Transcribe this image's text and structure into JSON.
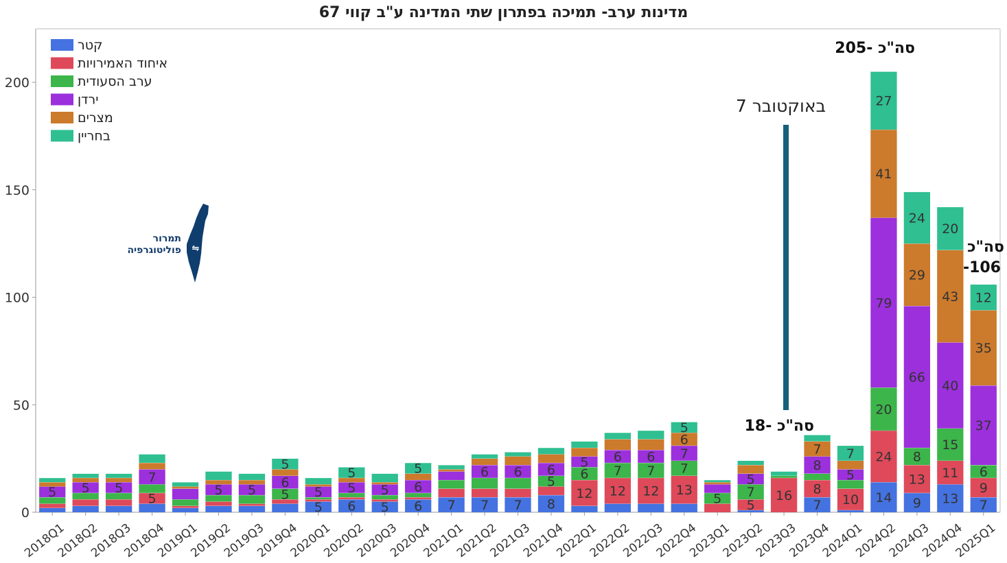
{
  "chart_data": {
    "type": "bar",
    "stacked": true,
    "title": "מדינות ערב- תמיכה בפתרון שתי המדינה ע\"ב קווי 67",
    "categories": [
      "2018Q1",
      "2018Q2",
      "2018Q3",
      "2018Q4",
      "2019Q1",
      "2019Q2",
      "2019Q3",
      "2019Q4",
      "2020Q1",
      "2020Q2",
      "2020Q3",
      "2020Q4",
      "2021Q1",
      "2021Q2",
      "2021Q3",
      "2021Q4",
      "2022Q1",
      "2022Q2",
      "2022Q3",
      "2022Q4",
      "2023Q1",
      "2023Q2",
      "2023Q3",
      "2023Q4",
      "2024Q1",
      "2024Q2",
      "2024Q3",
      "2024Q4",
      "2025Q1"
    ],
    "series": [
      {
        "name": "קטר",
        "color": "#4472e0",
        "values": [
          2,
          3,
          3,
          4,
          2,
          3,
          3,
          4,
          5,
          6,
          5,
          6,
          7,
          7,
          7,
          8,
          3,
          4,
          4,
          4,
          0,
          1,
          0,
          7,
          1,
          14,
          9,
          13,
          7
        ]
      },
      {
        "name": "איחוד האמירויות",
        "color": "#de4a5a",
        "values": [
          2,
          3,
          3,
          5,
          1,
          2,
          1,
          2,
          1,
          1,
          1,
          1,
          4,
          4,
          4,
          4,
          12,
          12,
          12,
          13,
          4,
          5,
          16,
          8,
          10,
          24,
          13,
          11,
          9
        ]
      },
      {
        "name": "ערב הסעודית",
        "color": "#3cb54a",
        "values": [
          3,
          3,
          3,
          4,
          3,
          3,
          4,
          5,
          1,
          2,
          2,
          2,
          4,
          5,
          5,
          5,
          6,
          7,
          7,
          7,
          5,
          7,
          1,
          3,
          4,
          20,
          8,
          15,
          6
        ]
      },
      {
        "name": "ירדן",
        "color": "#9b30dc",
        "values": [
          5,
          5,
          5,
          7,
          5,
          5,
          5,
          6,
          5,
          5,
          5,
          6,
          4,
          6,
          6,
          6,
          5,
          6,
          6,
          7,
          4,
          5,
          0,
          8,
          5,
          79,
          66,
          40,
          37
        ]
      },
      {
        "name": "מצרים",
        "color": "#cc7a2c",
        "values": [
          2,
          2,
          2,
          3,
          1,
          2,
          2,
          3,
          1,
          2,
          1,
          3,
          1,
          3,
          4,
          4,
          4,
          5,
          5,
          6,
          1,
          4,
          0,
          7,
          4,
          41,
          29,
          43,
          35
        ]
      },
      {
        "name": "בחריין",
        "color": "#2fbf91",
        "values": [
          2,
          2,
          2,
          4,
          2,
          4,
          3,
          5,
          3,
          5,
          4,
          5,
          2,
          2,
          2,
          3,
          3,
          3,
          4,
          5,
          1,
          2,
          2,
          3,
          7,
          27,
          24,
          20,
          12
        ]
      }
    ],
    "ylim": [
      0,
      225
    ],
    "yticks": [
      0,
      50,
      100,
      150,
      200
    ],
    "value_labels": [
      [
        [],
        [
          "",
          "",
          "",
          "",
          "",
          ""
        ]
      ],
      {
        "0": [
          null,
          null,
          null,
          "5",
          null,
          null
        ],
        "1": [
          null,
          null,
          null,
          "5",
          null,
          null
        ],
        "2": [
          null,
          null,
          null,
          "5",
          null,
          null
        ],
        "3": [
          null,
          "5",
          null,
          "7",
          null,
          null
        ],
        "5": [
          null,
          null,
          null,
          "5",
          null,
          null
        ],
        "6": [
          null,
          null,
          null,
          "5",
          null,
          null
        ],
        "7": [
          null,
          null,
          "5",
          "6",
          null,
          "5"
        ],
        "8": [
          "5",
          null,
          null,
          "5",
          null,
          null
        ],
        "9": [
          "6",
          null,
          null,
          "5",
          null,
          "5"
        ],
        "10": [
          "5",
          null,
          null,
          "5",
          null,
          null
        ],
        "11": [
          "6",
          null,
          null,
          "6",
          null,
          "5"
        ],
        "12": [
          "7",
          null,
          null,
          null,
          null,
          null
        ],
        "13": [
          "7",
          null,
          null,
          "6",
          null,
          null
        ],
        "14": [
          "7",
          null,
          null,
          "6",
          null,
          null
        ],
        "15": [
          "8",
          null,
          "5",
          "6",
          null,
          null
        ],
        "16": [
          null,
          "12",
          "6",
          "5",
          null,
          null
        ],
        "17": [
          null,
          "12",
          "7",
          "6",
          null,
          null
        ],
        "18": [
          null,
          "12",
          "7",
          "6",
          null,
          null
        ],
        "19": [
          null,
          "13",
          "7",
          "7",
          "6",
          "5"
        ],
        "20": [
          null,
          null,
          "5",
          null,
          null,
          null
        ],
        "21": [
          null,
          "5",
          "7",
          "5",
          null,
          null
        ],
        "22": [
          null,
          "16",
          null,
          null,
          null,
          null
        ],
        "23": [
          "7",
          "8",
          null,
          "8",
          "7",
          null
        ],
        "24": [
          null,
          "10",
          null,
          "5",
          null,
          "7"
        ],
        "25": [
          "14",
          "24",
          "20",
          "79",
          "41",
          "27"
        ],
        "26": [
          "9",
          "13",
          "8",
          "66",
          "29",
          "24"
        ],
        "27": [
          "13",
          "11",
          "15",
          "40",
          "43",
          "20"
        ],
        "28": [
          "7",
          "9",
          "6",
          "37",
          "35",
          "12"
        ]
      }
    ],
    "annotations": {
      "oct7": "7 באוקטובר",
      "total_2023q3": "סה\"כ -18",
      "total_2024q2": "סה\"כ -205",
      "total_2025q1_line1": "סה\"כ",
      "total_2025q1_line2": "-106"
    },
    "legend_position": "top-left",
    "grid": false
  },
  "logo": {
    "line1": "תמרור",
    "line2": "פוליטוגרפיה",
    "map_color": "#0f3d6e"
  }
}
